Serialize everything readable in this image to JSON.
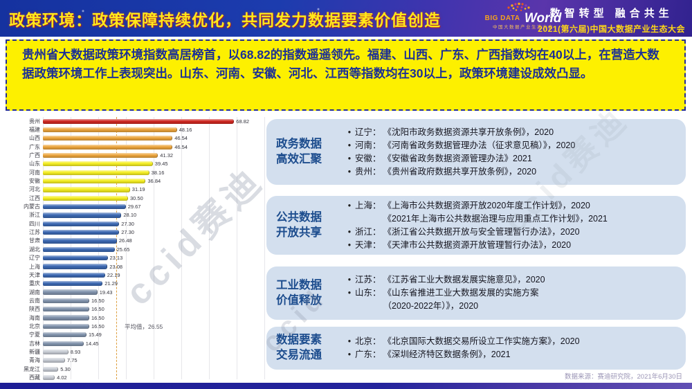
{
  "header": {
    "title": "政策环境：政策保障持续优化，共同发力数据要素价值创造",
    "logo": {
      "big": "BIG DATA",
      "world": "World",
      "sub": "中国大数据产业生态大会"
    },
    "slogan_line1": "数智转型 融合共生",
    "slogan_line2": "2021(第六届)中国大数据产业生态大会"
  },
  "summary": "贵州省大数据政策环境指数高居榜首，以68.82的指数遥遥领先。福建、山西、广东、广西指数均在40以上，在营造大数据政策环境工作上表现突出。山东、河南、安徽、河北、江西等指数均在30以上，政策环境建设成效凸显。",
  "chart_data": {
    "type": "bar",
    "orientation": "horizontal",
    "title": "",
    "xlabel": "",
    "ylabel": "",
    "xlim": [
      0,
      80
    ],
    "grid": true,
    "categories": [
      "贵州",
      "福建",
      "山西",
      "广东",
      "广西",
      "山东",
      "河南",
      "安徽",
      "河北",
      "江西",
      "内蒙古",
      "浙江",
      "四川",
      "江苏",
      "甘肃",
      "湖北",
      "辽宁",
      "上海",
      "天津",
      "重庆",
      "湖南",
      "云南",
      "陕西",
      "海南",
      "北京",
      "宁夏",
      "吉林",
      "新疆",
      "青海",
      "黑龙江",
      "西藏"
    ],
    "values": [
      68.82,
      48.16,
      46.54,
      46.54,
      41.32,
      39.45,
      38.16,
      36.84,
      31.19,
      30.5,
      29.67,
      28.1,
      27.3,
      27.3,
      26.48,
      25.65,
      23.13,
      23.08,
      22.19,
      21.29,
      19.43,
      16.5,
      16.5,
      16.5,
      16.5,
      15.49,
      14.45,
      8.93,
      7.75,
      5.3,
      4.02
    ],
    "groups": [
      "red",
      "orange",
      "orange",
      "orange",
      "orange",
      "yellow",
      "yellow",
      "yellow",
      "yellow",
      "yellow",
      "blue",
      "blue",
      "blue",
      "blue",
      "blue",
      "blue",
      "blue",
      "blue",
      "blue",
      "blue",
      "grayblue",
      "grayblue",
      "grayblue",
      "grayblue",
      "grayblue",
      "grayblue",
      "grayblue",
      "silver",
      "silver",
      "silver",
      "silver"
    ],
    "colors": {
      "red": "#cf2721",
      "orange": "#eca53c",
      "yellow": "#f5ee22",
      "blue": "#3c69b3",
      "grayblue": "#8294ad",
      "silver": "#c7ccd4"
    },
    "average": 26.55,
    "average_label": "平均值，26.55"
  },
  "panels": [
    {
      "title": [
        "政务数据",
        "高效汇聚"
      ],
      "items": [
        {
          "region": "辽宁：",
          "lines": [
            "《沈阳市政务数据资源共享开放条例》，2020"
          ]
        },
        {
          "region": "河南：",
          "lines": [
            "《河南省政务数据管理办法（征求意见稿）》，2020"
          ]
        },
        {
          "region": "安徽：",
          "lines": [
            "《安徽省政务数据资源管理办法》2021"
          ]
        },
        {
          "region": "贵州：",
          "lines": [
            "《贵州省政府数据共享开放条例》，2020"
          ]
        }
      ]
    },
    {
      "title": [
        "公共数据",
        "开放共享"
      ],
      "items": [
        {
          "region": "上海：",
          "lines": [
            "《上海市公共数据资源开放2020年度工作计划》，2020",
            "《2021年上海市公共数据治理与应用重点工作计划》，2021"
          ]
        },
        {
          "region": "浙江：",
          "lines": [
            "《浙江省公共数据开放与安全管理暂行办法》，2020"
          ]
        },
        {
          "region": "天津：",
          "lines": [
            "《天津市公共数据资源开放管理暂行办法》，2020"
          ]
        }
      ]
    },
    {
      "title": [
        "工业数据",
        "价值释放"
      ],
      "items": [
        {
          "region": "江苏：",
          "lines": [
            "《江苏省工业大数据发展实施意见》，2020"
          ]
        },
        {
          "region": "山东：",
          "lines": [
            "《山东省推进工业大数据发展的实施方案",
            "（2020-2022年）》，2020"
          ]
        }
      ]
    },
    {
      "title": [
        "数据要素",
        "交易流通"
      ],
      "items": [
        {
          "region": "北京：",
          "lines": [
            "《北京国际大数据交易所设立工作实施方案》，2020"
          ]
        },
        {
          "region": "广东：",
          "lines": [
            "《深圳经济特区数据条例》，2021"
          ]
        }
      ]
    }
  ],
  "source": "数据来源：赛迪研究院，2021年6月30日",
  "watermarks": [
    "ccid赛迪",
    "ccid",
    "ccid赛迪"
  ]
}
